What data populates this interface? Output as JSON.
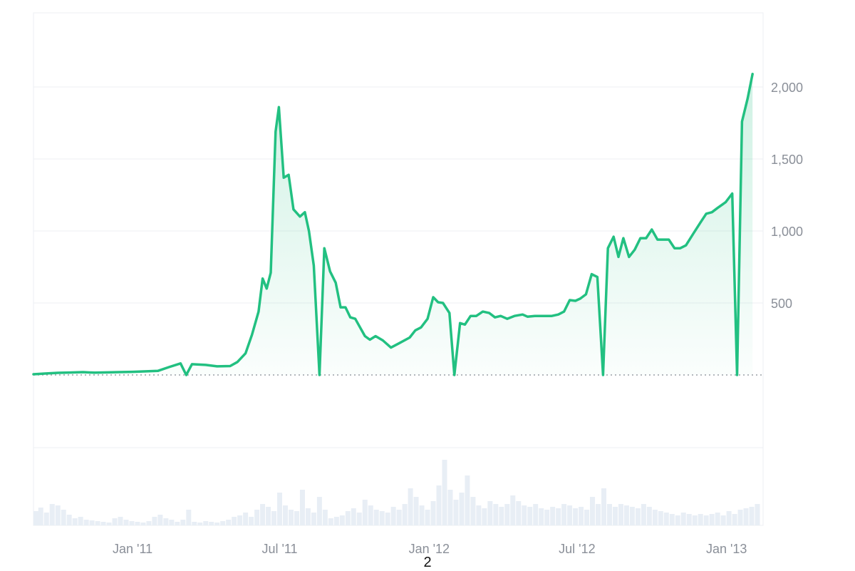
{
  "page": {
    "number": "2"
  },
  "chart_data": {
    "type": "area",
    "x_type": "date",
    "y_ticks": [
      "500",
      "1,000",
      "1,500",
      "2,000"
    ],
    "y_tick_values": [
      500,
      1000,
      1500,
      2000
    ],
    "x_tick_labels": [
      "Jan '11",
      "Jul '11",
      "Jan '12",
      "Jul '12",
      "Jan '13"
    ],
    "x_tick_dates": [
      "2011-01-01",
      "2011-07-01",
      "2012-01-01",
      "2012-07-01",
      "2013-01-01"
    ],
    "xlim": [
      "2010-09-01",
      "2013-02-15"
    ],
    "ylim": [
      0,
      2500
    ],
    "grid": true,
    "colors": {
      "line": "#22c081",
      "fill": "#22c081",
      "volume": "#e8eef5",
      "grid": "#eceff3"
    },
    "series": [
      {
        "points": [
          [
            "2010-09-01",
            5
          ],
          [
            "2010-09-15",
            10
          ],
          [
            "2010-10-01",
            15
          ],
          [
            "2010-10-15",
            17
          ],
          [
            "2010-11-01",
            20
          ],
          [
            "2010-11-15",
            16
          ],
          [
            "2010-12-01",
            18
          ],
          [
            "2010-12-15",
            20
          ],
          [
            "2011-01-01",
            22
          ],
          [
            "2011-01-15",
            25
          ],
          [
            "2011-02-01",
            28
          ],
          [
            "2011-02-15",
            55
          ],
          [
            "2011-03-01",
            80
          ],
          [
            "2011-03-08",
            0
          ],
          [
            "2011-03-15",
            75
          ],
          [
            "2011-04-01",
            70
          ],
          [
            "2011-04-15",
            60
          ],
          [
            "2011-05-01",
            62
          ],
          [
            "2011-05-10",
            90
          ],
          [
            "2011-05-20",
            150
          ],
          [
            "2011-05-28",
            280
          ],
          [
            "2011-06-05",
            440
          ],
          [
            "2011-06-10",
            670
          ],
          [
            "2011-06-15",
            600
          ],
          [
            "2011-06-20",
            710
          ],
          [
            "2011-06-26",
            1690
          ],
          [
            "2011-06-30",
            1860
          ],
          [
            "2011-07-06",
            1370
          ],
          [
            "2011-07-12",
            1390
          ],
          [
            "2011-07-18",
            1150
          ],
          [
            "2011-07-26",
            1100
          ],
          [
            "2011-08-01",
            1130
          ],
          [
            "2011-08-06",
            1000
          ],
          [
            "2011-08-12",
            760
          ],
          [
            "2011-08-19",
            0
          ],
          [
            "2011-08-25",
            880
          ],
          [
            "2011-09-01",
            720
          ],
          [
            "2011-09-08",
            640
          ],
          [
            "2011-09-14",
            470
          ],
          [
            "2011-09-20",
            470
          ],
          [
            "2011-09-26",
            400
          ],
          [
            "2011-10-02",
            390
          ],
          [
            "2011-10-14",
            270
          ],
          [
            "2011-10-20",
            245
          ],
          [
            "2011-10-27",
            270
          ],
          [
            "2011-11-05",
            240
          ],
          [
            "2011-11-15",
            190
          ],
          [
            "2011-11-25",
            220
          ],
          [
            "2011-12-08",
            260
          ],
          [
            "2011-12-15",
            310
          ],
          [
            "2011-12-22",
            330
          ],
          [
            "2011-12-30",
            390
          ],
          [
            "2012-01-06",
            540
          ],
          [
            "2012-01-12",
            505
          ],
          [
            "2012-01-18",
            500
          ],
          [
            "2012-01-26",
            430
          ],
          [
            "2012-02-01",
            0
          ],
          [
            "2012-02-08",
            360
          ],
          [
            "2012-02-14",
            350
          ],
          [
            "2012-02-21",
            410
          ],
          [
            "2012-02-28",
            410
          ],
          [
            "2012-03-07",
            440
          ],
          [
            "2012-03-15",
            430
          ],
          [
            "2012-03-22",
            400
          ],
          [
            "2012-03-29",
            410
          ],
          [
            "2012-04-06",
            390
          ],
          [
            "2012-04-15",
            410
          ],
          [
            "2012-04-25",
            420
          ],
          [
            "2012-05-01",
            405
          ],
          [
            "2012-05-10",
            410
          ],
          [
            "2012-05-20",
            410
          ],
          [
            "2012-05-31",
            410
          ],
          [
            "2012-06-08",
            420
          ],
          [
            "2012-06-15",
            440
          ],
          [
            "2012-06-22",
            520
          ],
          [
            "2012-06-29",
            515
          ],
          [
            "2012-07-05",
            530
          ],
          [
            "2012-07-12",
            560
          ],
          [
            "2012-07-19",
            700
          ],
          [
            "2012-07-26",
            680
          ],
          [
            "2012-08-02",
            0
          ],
          [
            "2012-08-08",
            880
          ],
          [
            "2012-08-15",
            960
          ],
          [
            "2012-08-21",
            820
          ],
          [
            "2012-08-27",
            950
          ],
          [
            "2012-09-03",
            820
          ],
          [
            "2012-09-10",
            870
          ],
          [
            "2012-09-17",
            950
          ],
          [
            "2012-09-24",
            950
          ],
          [
            "2012-10-01",
            1010
          ],
          [
            "2012-10-08",
            940
          ],
          [
            "2012-10-15",
            940
          ],
          [
            "2012-10-22",
            940
          ],
          [
            "2012-10-29",
            880
          ],
          [
            "2012-11-05",
            880
          ],
          [
            "2012-11-12",
            900
          ],
          [
            "2012-11-21",
            980
          ],
          [
            "2012-11-30",
            1060
          ],
          [
            "2012-12-07",
            1120
          ],
          [
            "2012-12-14",
            1130
          ],
          [
            "2012-12-21",
            1160
          ],
          [
            "2012-12-31",
            1200
          ],
          [
            "2013-01-08",
            1260
          ],
          [
            "2013-01-14",
            0
          ],
          [
            "2013-01-20",
            1760
          ],
          [
            "2013-01-27",
            1920
          ],
          [
            "2013-02-02",
            2090
          ]
        ]
      }
    ],
    "volume": [
      [
        "2010-09-04",
        0.2
      ],
      [
        "2010-09-10",
        0.25
      ],
      [
        "2010-09-17",
        0.18
      ],
      [
        "2010-09-24",
        0.3
      ],
      [
        "2010-10-01",
        0.28
      ],
      [
        "2010-10-08",
        0.22
      ],
      [
        "2010-10-15",
        0.15
      ],
      [
        "2010-10-22",
        0.1
      ],
      [
        "2010-10-29",
        0.12
      ],
      [
        "2010-11-05",
        0.08
      ],
      [
        "2010-11-12",
        0.07
      ],
      [
        "2010-11-19",
        0.06
      ],
      [
        "2010-11-26",
        0.05
      ],
      [
        "2010-12-03",
        0.04
      ],
      [
        "2010-12-10",
        0.1
      ],
      [
        "2010-12-17",
        0.12
      ],
      [
        "2010-12-24",
        0.08
      ],
      [
        "2010-12-31",
        0.06
      ],
      [
        "2011-01-07",
        0.05
      ],
      [
        "2011-01-14",
        0.04
      ],
      [
        "2011-01-21",
        0.06
      ],
      [
        "2011-01-28",
        0.12
      ],
      [
        "2011-02-04",
        0.15
      ],
      [
        "2011-02-11",
        0.1
      ],
      [
        "2011-02-18",
        0.08
      ],
      [
        "2011-02-25",
        0.05
      ],
      [
        "2011-03-04",
        0.08
      ],
      [
        "2011-03-11",
        0.22
      ],
      [
        "2011-03-18",
        0.05
      ],
      [
        "2011-03-25",
        0.04
      ],
      [
        "2011-04-01",
        0.06
      ],
      [
        "2011-04-08",
        0.05
      ],
      [
        "2011-04-15",
        0.04
      ],
      [
        "2011-04-22",
        0.06
      ],
      [
        "2011-04-29",
        0.08
      ],
      [
        "2011-05-06",
        0.12
      ],
      [
        "2011-05-13",
        0.14
      ],
      [
        "2011-05-20",
        0.18
      ],
      [
        "2011-05-27",
        0.12
      ],
      [
        "2011-06-03",
        0.22
      ],
      [
        "2011-06-10",
        0.3
      ],
      [
        "2011-06-17",
        0.26
      ],
      [
        "2011-06-24",
        0.2
      ],
      [
        "2011-07-01",
        0.46
      ],
      [
        "2011-07-08",
        0.28
      ],
      [
        "2011-07-15",
        0.22
      ],
      [
        "2011-07-22",
        0.2
      ],
      [
        "2011-07-29",
        0.5
      ],
      [
        "2011-08-05",
        0.24
      ],
      [
        "2011-08-12",
        0.18
      ],
      [
        "2011-08-19",
        0.4
      ],
      [
        "2011-08-26",
        0.22
      ],
      [
        "2011-09-02",
        0.1
      ],
      [
        "2011-09-09",
        0.12
      ],
      [
        "2011-09-16",
        0.14
      ],
      [
        "2011-09-23",
        0.2
      ],
      [
        "2011-09-30",
        0.24
      ],
      [
        "2011-10-07",
        0.18
      ],
      [
        "2011-10-14",
        0.36
      ],
      [
        "2011-10-21",
        0.28
      ],
      [
        "2011-10-28",
        0.22
      ],
      [
        "2011-11-04",
        0.2
      ],
      [
        "2011-11-11",
        0.18
      ],
      [
        "2011-11-18",
        0.26
      ],
      [
        "2011-11-25",
        0.22
      ],
      [
        "2011-12-02",
        0.3
      ],
      [
        "2011-12-09",
        0.52
      ],
      [
        "2011-12-16",
        0.4
      ],
      [
        "2011-12-23",
        0.28
      ],
      [
        "2011-12-30",
        0.22
      ],
      [
        "2012-01-06",
        0.34
      ],
      [
        "2012-01-13",
        0.56
      ],
      [
        "2012-01-20",
        0.92
      ],
      [
        "2012-01-27",
        0.5
      ],
      [
        "2012-02-03",
        0.36
      ],
      [
        "2012-02-10",
        0.46
      ],
      [
        "2012-02-17",
        0.7
      ],
      [
        "2012-02-24",
        0.4
      ],
      [
        "2012-03-02",
        0.28
      ],
      [
        "2012-03-09",
        0.24
      ],
      [
        "2012-03-16",
        0.34
      ],
      [
        "2012-03-23",
        0.3
      ],
      [
        "2012-03-30",
        0.26
      ],
      [
        "2012-04-06",
        0.3
      ],
      [
        "2012-04-13",
        0.42
      ],
      [
        "2012-04-20",
        0.34
      ],
      [
        "2012-04-27",
        0.28
      ],
      [
        "2012-05-04",
        0.26
      ],
      [
        "2012-05-11",
        0.3
      ],
      [
        "2012-05-18",
        0.24
      ],
      [
        "2012-05-25",
        0.22
      ],
      [
        "2012-06-01",
        0.26
      ],
      [
        "2012-06-08",
        0.24
      ],
      [
        "2012-06-15",
        0.3
      ],
      [
        "2012-06-22",
        0.28
      ],
      [
        "2012-06-29",
        0.24
      ],
      [
        "2012-07-06",
        0.26
      ],
      [
        "2012-07-13",
        0.22
      ],
      [
        "2012-07-20",
        0.4
      ],
      [
        "2012-07-27",
        0.3
      ],
      [
        "2012-08-03",
        0.52
      ],
      [
        "2012-08-10",
        0.3
      ],
      [
        "2012-08-17",
        0.26
      ],
      [
        "2012-08-24",
        0.3
      ],
      [
        "2012-08-31",
        0.28
      ],
      [
        "2012-09-07",
        0.26
      ],
      [
        "2012-09-14",
        0.24
      ],
      [
        "2012-09-21",
        0.3
      ],
      [
        "2012-09-28",
        0.26
      ],
      [
        "2012-10-05",
        0.22
      ],
      [
        "2012-10-12",
        0.2
      ],
      [
        "2012-10-19",
        0.18
      ],
      [
        "2012-10-26",
        0.16
      ],
      [
        "2012-11-02",
        0.14
      ],
      [
        "2012-11-09",
        0.18
      ],
      [
        "2012-11-16",
        0.16
      ],
      [
        "2012-11-23",
        0.14
      ],
      [
        "2012-11-30",
        0.16
      ],
      [
        "2012-12-07",
        0.14
      ],
      [
        "2012-12-14",
        0.16
      ],
      [
        "2012-12-21",
        0.18
      ],
      [
        "2012-12-28",
        0.14
      ],
      [
        "2013-01-04",
        0.2
      ],
      [
        "2013-01-11",
        0.16
      ],
      [
        "2013-01-18",
        0.22
      ],
      [
        "2013-01-25",
        0.24
      ],
      [
        "2013-02-01",
        0.26
      ],
      [
        "2013-02-08",
        0.3
      ]
    ]
  }
}
